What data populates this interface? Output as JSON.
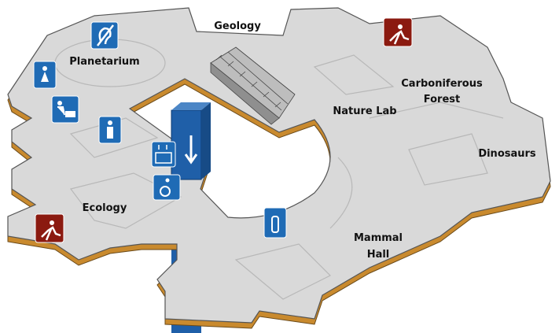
{
  "rooms": [
    {
      "lines": [
        "Geology"
      ]
    },
    {
      "lines": [
        "Planetarium"
      ]
    },
    {
      "lines": [
        "Carboniferous",
        "Forest"
      ]
    },
    {
      "lines": [
        "Nature Lab"
      ]
    },
    {
      "lines": [
        "Dinosaurs"
      ]
    },
    {
      "lines": [
        "Ecology"
      ]
    },
    {
      "lines": [
        "Mammal",
        "Hall"
      ]
    }
  ]
}
